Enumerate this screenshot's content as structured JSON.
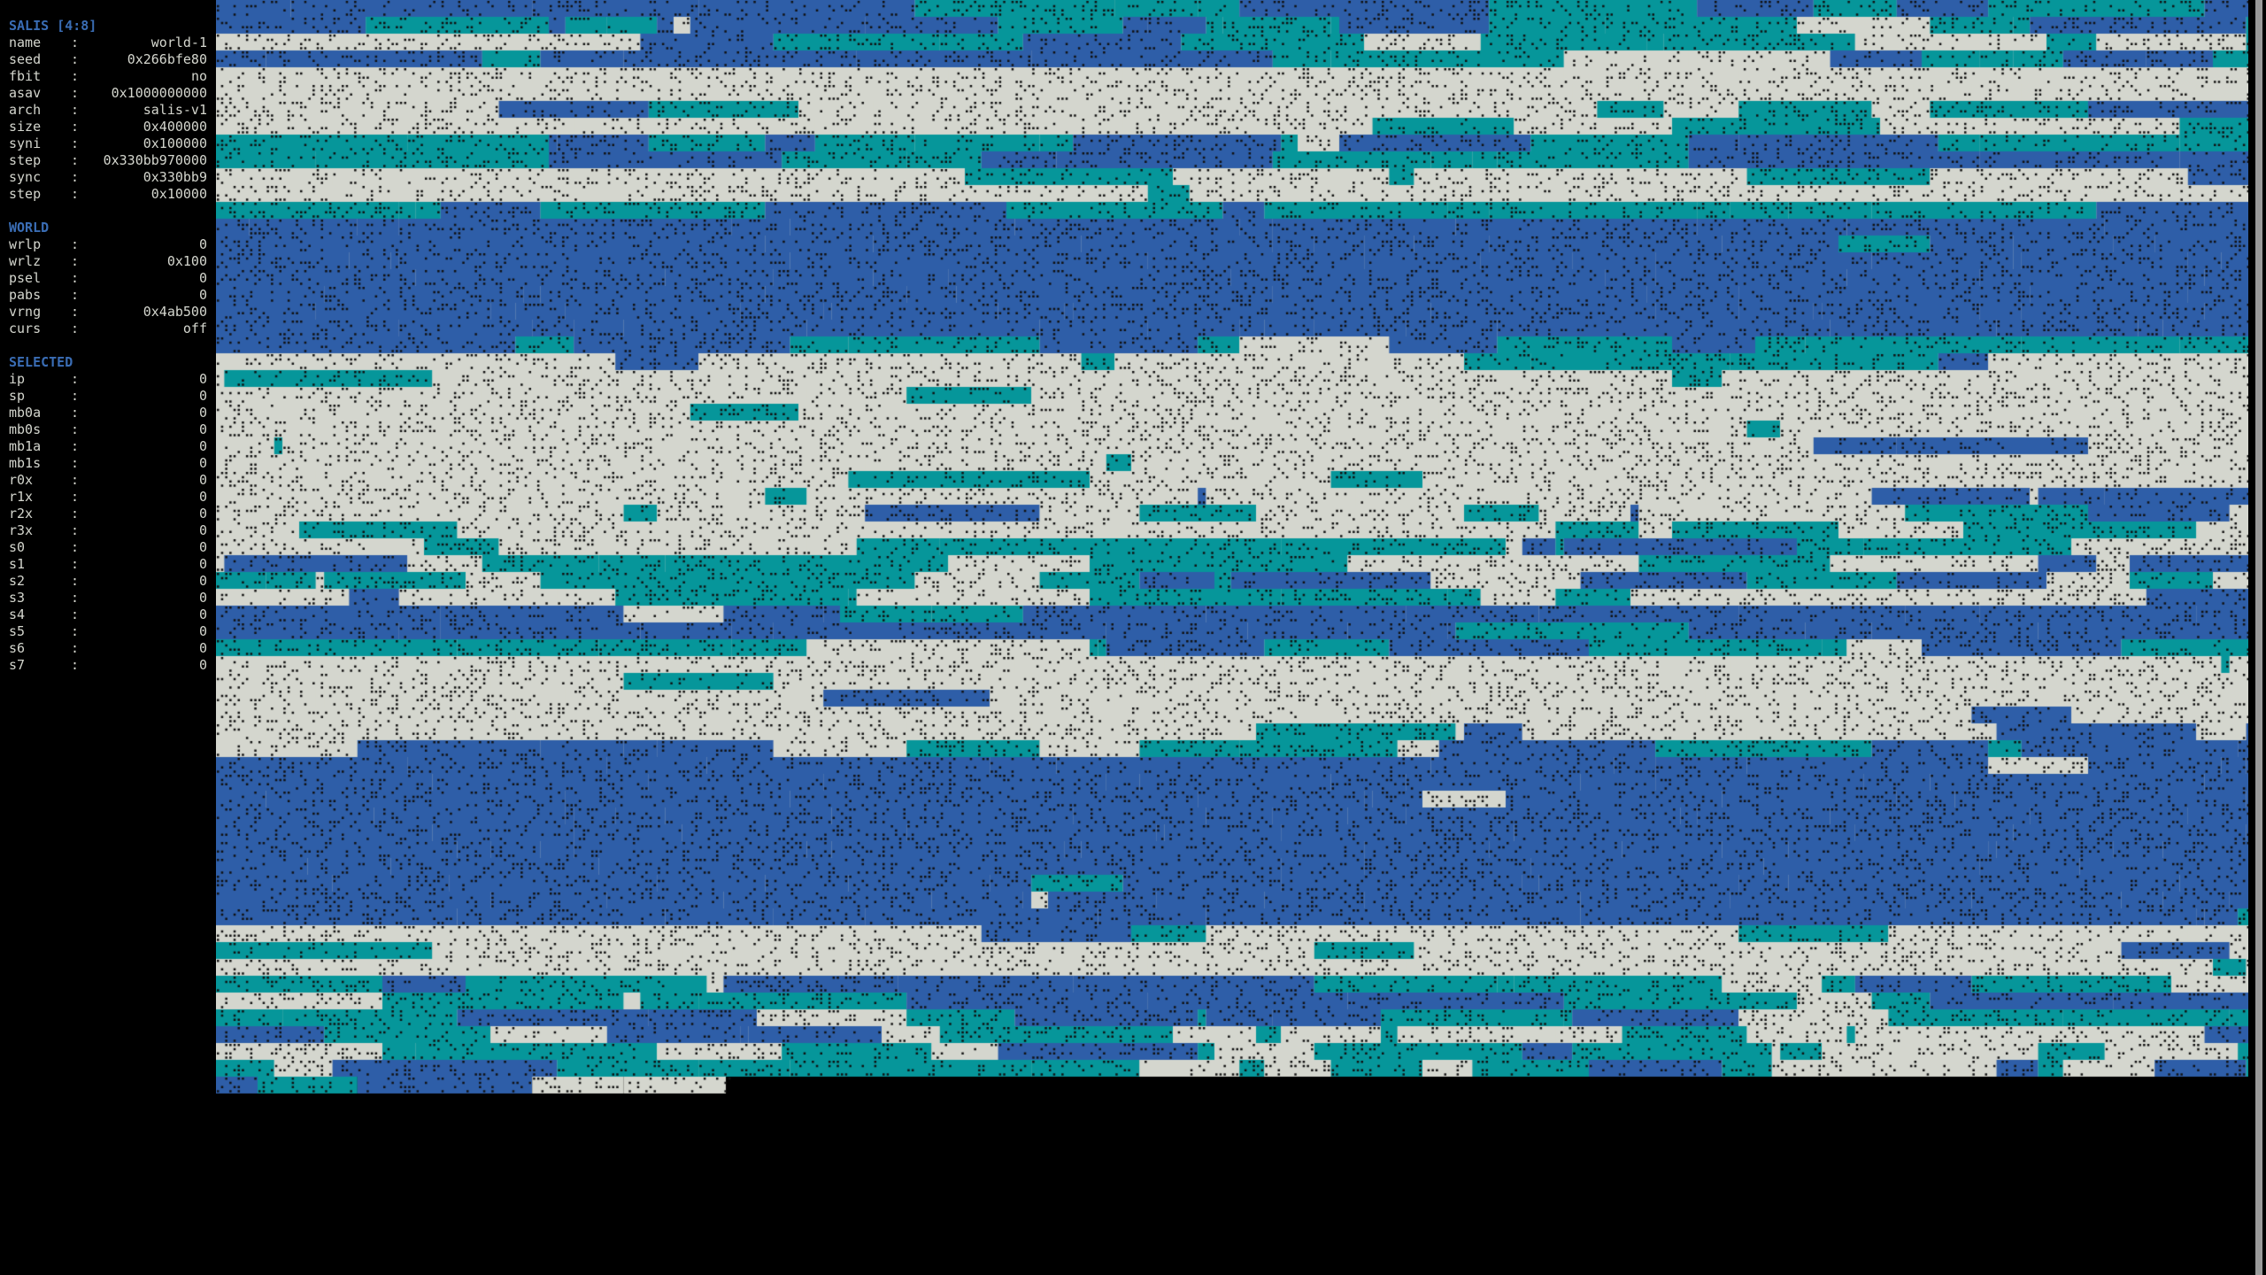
{
  "colors": {
    "background": "#000000",
    "heading": "#3a6db5",
    "text": "#d4d6ce",
    "cell_empty": "#d4d6ce",
    "cell_teal": "#06969a",
    "cell_blue": "#2e5ea8",
    "dot": "#111111"
  },
  "salis": {
    "title": "SALIS [4:8]",
    "fields": [
      {
        "key": "name",
        "value": "world-1"
      },
      {
        "key": "seed",
        "value": "0x266bfe80"
      },
      {
        "key": "fbit",
        "value": "no"
      },
      {
        "key": "asav",
        "value": "0x1000000000"
      },
      {
        "key": "arch",
        "value": "salis-v1"
      },
      {
        "key": "size",
        "value": "0x400000"
      },
      {
        "key": "syni",
        "value": "0x100000"
      },
      {
        "key": "step",
        "value": "0x330bb970000"
      },
      {
        "key": "sync",
        "value": "0x330bb9"
      },
      {
        "key": "step",
        "value": "0x10000"
      }
    ]
  },
  "world": {
    "title": "WORLD",
    "fields": [
      {
        "key": "wrlp",
        "value": "0"
      },
      {
        "key": "wrlz",
        "value": "0x100"
      },
      {
        "key": "psel",
        "value": "0"
      },
      {
        "key": "pabs",
        "value": "0"
      },
      {
        "key": "vrng",
        "value": "0x4ab500"
      },
      {
        "key": "curs",
        "value": "off"
      }
    ]
  },
  "selected": {
    "title": "SELECTED",
    "fields": [
      {
        "key": "ip",
        "value": "0"
      },
      {
        "key": "sp",
        "value": "0"
      },
      {
        "key": "mb0a",
        "value": "0"
      },
      {
        "key": "mb0s",
        "value": "0"
      },
      {
        "key": "mb1a",
        "value": "0"
      },
      {
        "key": "mb1s",
        "value": "0"
      },
      {
        "key": "r0x",
        "value": "0"
      },
      {
        "key": "r1x",
        "value": "0"
      },
      {
        "key": "r2x",
        "value": "0"
      },
      {
        "key": "r3x",
        "value": "0"
      },
      {
        "key": "s0",
        "value": "0"
      },
      {
        "key": "s1",
        "value": "0"
      },
      {
        "key": "s2",
        "value": "0"
      },
      {
        "key": "s3",
        "value": "0"
      },
      {
        "key": "s4",
        "value": "0"
      },
      {
        "key": "s5",
        "value": "0"
      },
      {
        "key": "s6",
        "value": "0"
      },
      {
        "key": "s7",
        "value": "0"
      }
    ]
  }
}
